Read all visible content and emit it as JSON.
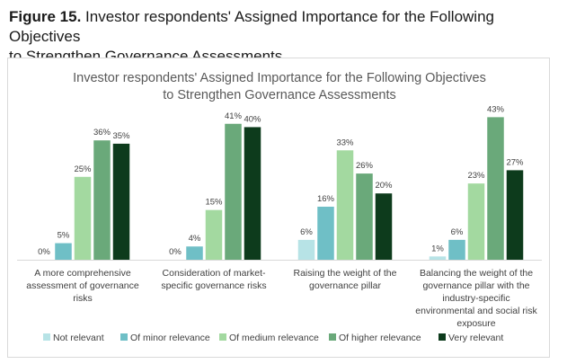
{
  "caption": {
    "prefix": "Figure 15.",
    "line1": "Investor respondents' Assigned Importance for the Following Objectives",
    "line2": "to Strengthen Governance Assessments"
  },
  "chart_data": {
    "type": "bar",
    "title": [
      "Investor respondents' Assigned Importance for the Following Objectives",
      "to Strengthen Governance Assessments"
    ],
    "categories": [
      [
        "A more comprehensive",
        "assessment of governance",
        "risks"
      ],
      [
        "Consideration of market-",
        "specific governance risks"
      ],
      [
        "Raising the weight of the",
        "governance pillar"
      ],
      [
        "Balancing the weight of the",
        "governance pillar with the",
        "industry-specific",
        "environmental and social risk",
        "exposure"
      ]
    ],
    "series": [
      {
        "name": "Not relevant",
        "color": "#b7e3e6",
        "values": [
          0,
          0,
          6,
          1
        ]
      },
      {
        "name": "Of minor relevance",
        "color": "#6fbfc6",
        "values": [
          5,
          4,
          16,
          6
        ]
      },
      {
        "name": "Of medium relevance",
        "color": "#a3d9a0",
        "values": [
          25,
          15,
          33,
          23
        ]
      },
      {
        "name": "Of higher relevance",
        "color": "#6aa97a",
        "values": [
          36,
          41,
          26,
          43
        ]
      },
      {
        "name": "Very relevant",
        "color": "#0d3b1c",
        "values": [
          35,
          40,
          20,
          27
        ]
      }
    ],
    "value_suffix": "%",
    "ylim": [
      0,
      45
    ],
    "grid": false,
    "legend_position": "bottom"
  }
}
